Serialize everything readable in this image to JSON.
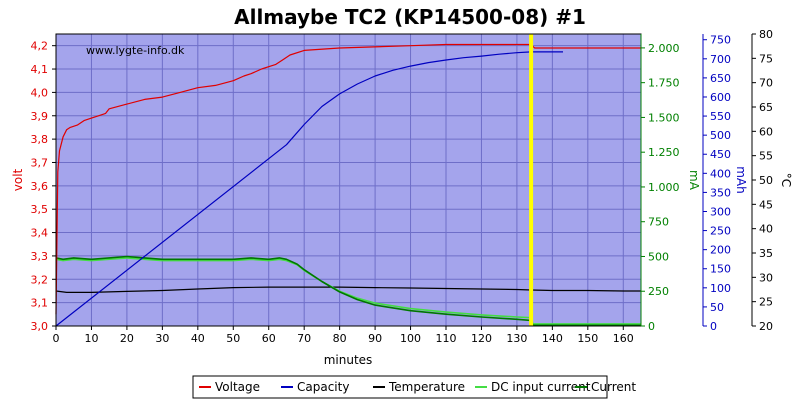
{
  "chart_data": {
    "type": "line",
    "title": "Allmaybe TC2 (KP14500-08) #1",
    "watermark": "www.lygte-info.dk",
    "xlabel": "minutes",
    "xlim": [
      0,
      165
    ],
    "xticks": [
      "0",
      "10",
      "20",
      "30",
      "40",
      "50",
      "60",
      "70",
      "80",
      "90",
      "100",
      "110",
      "120",
      "130",
      "140",
      "150",
      "160"
    ],
    "axes": {
      "voltage": {
        "label": "volt",
        "range": [
          3.0,
          4.25
        ],
        "ticks": [
          "3,0",
          "3,1",
          "3,2",
          "3,3",
          "3,4",
          "3,5",
          "3,6",
          "3,7",
          "3,8",
          "3,9",
          "4,0",
          "4,1",
          "4,2"
        ],
        "color": "#e00000"
      },
      "current": {
        "label": "mA",
        "range": [
          0,
          2100
        ],
        "ticks": [
          "0",
          "250",
          "500",
          "750",
          "1.000",
          "1.250",
          "1.500",
          "1.750",
          "2.000"
        ],
        "color": "#008000"
      },
      "capacity": {
        "label": "mAh",
        "range": [
          0,
          765
        ],
        "ticks": [
          "0",
          "50",
          "100",
          "150",
          "200",
          "250",
          "300",
          "350",
          "400",
          "450",
          "500",
          "550",
          "600",
          "650",
          "700",
          "750"
        ],
        "color": "#0000c0"
      },
      "temperature": {
        "label": "°C",
        "range": [
          20,
          80
        ],
        "ticks": [
          "20",
          "25",
          "30",
          "35",
          "40",
          "45",
          "50",
          "55",
          "60",
          "65",
          "70",
          "75",
          "80"
        ],
        "color": "#000000"
      }
    },
    "marker": {
      "x": 134,
      "color": "#ffff00"
    },
    "legend_position": "bottom",
    "series": [
      {
        "name": "Voltage",
        "axis": "voltage",
        "color": "#e00000",
        "x": [
          0,
          0.5,
          1,
          2,
          3,
          4,
          6,
          8,
          10,
          12,
          14,
          15,
          20,
          25,
          30,
          35,
          40,
          45,
          50,
          53,
          55,
          58,
          60,
          62,
          64,
          66,
          70,
          80,
          100,
          110,
          120,
          130,
          134,
          135,
          165
        ],
        "y": [
          3.05,
          3.66,
          3.75,
          3.81,
          3.84,
          3.85,
          3.86,
          3.88,
          3.89,
          3.9,
          3.91,
          3.93,
          3.95,
          3.97,
          3.98,
          4.0,
          4.02,
          4.03,
          4.05,
          4.07,
          4.08,
          4.1,
          4.11,
          4.12,
          4.14,
          4.16,
          4.18,
          4.19,
          4.2,
          4.205,
          4.205,
          4.205,
          4.205,
          4.19,
          4.19
        ]
      },
      {
        "name": "Capacity",
        "axis": "capacity",
        "color": "#0000c0",
        "x": [
          0,
          65,
          70,
          75,
          80,
          85,
          90,
          95,
          100,
          105,
          110,
          115,
          120,
          125,
          130,
          134,
          143
        ],
        "y": [
          0,
          475,
          528,
          575,
          608,
          634,
          655,
          670,
          681,
          690,
          697,
          703,
          707,
          712,
          716,
          718,
          718
        ]
      },
      {
        "name": "Temperature",
        "axis": "temperature",
        "color": "#000000",
        "x": [
          0,
          3,
          10,
          20,
          30,
          40,
          50,
          60,
          70,
          80,
          90,
          100,
          110,
          120,
          130,
          134,
          140,
          150,
          160,
          165
        ],
        "y": [
          27.2,
          26.9,
          26.9,
          27.1,
          27.3,
          27.6,
          27.9,
          28.0,
          28.0,
          28.0,
          27.9,
          27.8,
          27.7,
          27.6,
          27.5,
          27.4,
          27.3,
          27.3,
          27.2,
          27.2
        ]
      },
      {
        "name": "DC input current",
        "axis": "current",
        "color": "#44dd44",
        "x": [
          0,
          2,
          5,
          10,
          20,
          25,
          30,
          40,
          50,
          55,
          60,
          63,
          65,
          68,
          70,
          75,
          80,
          85,
          90,
          100,
          110,
          120,
          130,
          134,
          134.5,
          165
        ],
        "y": [
          480,
          470,
          480,
          470,
          490,
          480,
          470,
          470,
          470,
          480,
          470,
          480,
          470,
          440,
          400,
          320,
          250,
          200,
          165,
          125,
          100,
          80,
          65,
          60,
          15,
          15
        ]
      },
      {
        "name": "Current",
        "axis": "current",
        "color": "#007700",
        "x": [
          0,
          2,
          5,
          10,
          20,
          25,
          30,
          40,
          50,
          55,
          60,
          63,
          65,
          68,
          70,
          75,
          80,
          85,
          90,
          100,
          110,
          120,
          130,
          134,
          134.5,
          165
        ],
        "y": [
          490,
          480,
          490,
          480,
          500,
          490,
          480,
          480,
          480,
          490,
          480,
          490,
          480,
          445,
          405,
          320,
          245,
          190,
          150,
          110,
          85,
          65,
          48,
          40,
          5,
          5
        ]
      }
    ]
  }
}
